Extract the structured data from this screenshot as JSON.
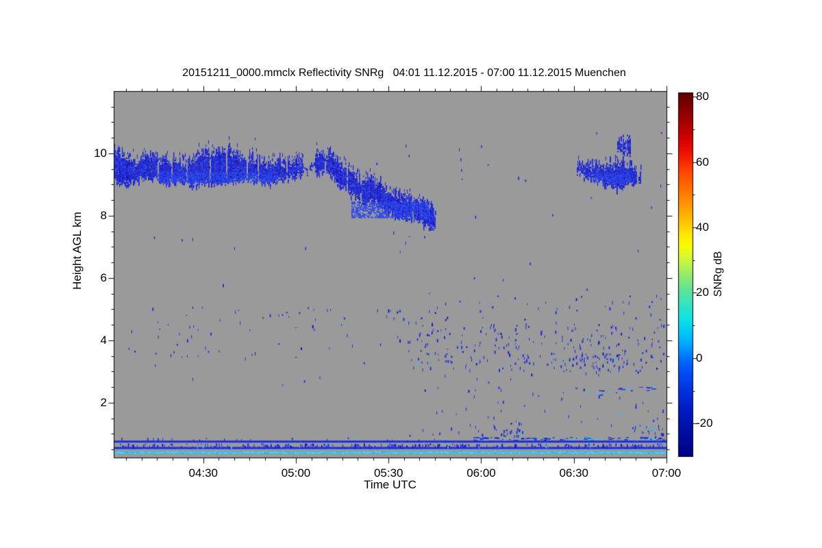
{
  "page": {
    "background": "#ffffff"
  },
  "chart_data": {
    "type": "heatmap",
    "title": "20151211_0000.mmclx Reflectivity SNRg   04:01 11.12.2015 - 07:00 11.12.2015 Muenchen",
    "xlabel": "Time UTC",
    "ylabel": "Height AGL km",
    "colorbar_label": "SNRg dB",
    "station": "Muenchen",
    "time_range": "04:01 11.12.2015 - 07:00 11.12.2015",
    "background_color": "#9a9a9a",
    "x_axis": {
      "t_start_min": 1,
      "t_end_min": 180,
      "major_ticks": [
        {
          "t": 30,
          "label": "04:30"
        },
        {
          "t": 60,
          "label": "05:00"
        },
        {
          "t": 90,
          "label": "05:30"
        },
        {
          "t": 120,
          "label": "06:00"
        },
        {
          "t": 150,
          "label": "06:30"
        },
        {
          "t": 180,
          "label": "07:00"
        }
      ],
      "minor_step_min": 5
    },
    "y_axis": {
      "min": 0.24,
      "max": 12,
      "major_ticks": [
        {
          "v": 2,
          "label": "2"
        },
        {
          "v": 4,
          "label": "4"
        },
        {
          "v": 6,
          "label": "6"
        },
        {
          "v": 8,
          "label": "8"
        },
        {
          "v": 10,
          "label": "10"
        }
      ],
      "minor_step": 0.5
    },
    "colorbar": {
      "min": -30,
      "max": 81.3,
      "major_ticks": [
        {
          "v": 80,
          "label": "80"
        },
        {
          "v": 60,
          "label": "60"
        },
        {
          "v": 40,
          "label": "40"
        },
        {
          "v": 20,
          "label": "20"
        },
        {
          "v": 0,
          "label": "0"
        },
        {
          "v": -20,
          "label": "-20"
        }
      ],
      "minor_step": 10,
      "gradient": [
        [
          0.0,
          "#600000"
        ],
        [
          0.05,
          "#8c0000"
        ],
        [
          0.11,
          "#c40000"
        ],
        [
          0.16,
          "#ee0c00"
        ],
        [
          0.21,
          "#ff4000"
        ],
        [
          0.26,
          "#ff6c00"
        ],
        [
          0.31,
          "#ff9800"
        ],
        [
          0.35,
          "#ffc000"
        ],
        [
          0.39,
          "#ffe800"
        ],
        [
          0.42,
          "#f8fc00"
        ],
        [
          0.46,
          "#ccf83c"
        ],
        [
          0.5,
          "#96ec6c"
        ],
        [
          0.54,
          "#60e494"
        ],
        [
          0.58,
          "#34e4c0"
        ],
        [
          0.62,
          "#0ce4e4"
        ],
        [
          0.66,
          "#00c8f8"
        ],
        [
          0.7,
          "#009cff"
        ],
        [
          0.73,
          "#0070ff"
        ],
        [
          0.77,
          "#004cf8"
        ],
        [
          0.82,
          "#0030e0"
        ],
        [
          0.87,
          "#001cc4"
        ],
        [
          0.93,
          "#000ea4"
        ],
        [
          1.0,
          "#000088"
        ]
      ]
    },
    "palette": {
      "cloud_base": "#1c24d8",
      "cloud_dark": "#1212b0",
      "cloud_light": "#2a44ea",
      "cloud_bright": "#3a66f2",
      "speckle": "#2230e4",
      "speckle_dark": "#1518bc",
      "cyan": "#38c4ee",
      "stripe_blue": "#1c2ce2",
      "stripe_cyan": "#3cc2ee",
      "stripe_cyan_light": "#70dcf8",
      "stripe_cyan_dark": "#28a0dc"
    },
    "cloud_bands": [
      {
        "name": "cirrus-deck-0401-0545",
        "profile": [
          [
            1,
            10.2,
            9.2
          ],
          [
            4,
            9.9,
            9.0
          ],
          [
            8,
            9.75,
            9.15
          ],
          [
            13,
            9.9,
            9.25
          ],
          [
            17,
            9.8,
            9.1
          ],
          [
            22,
            9.7,
            9.15
          ],
          [
            26,
            9.75,
            9.0
          ],
          [
            31,
            10.05,
            9.0
          ],
          [
            35,
            10.0,
            9.05
          ],
          [
            38,
            10.15,
            9.05
          ],
          [
            42,
            9.9,
            9.15
          ],
          [
            45,
            9.8,
            9.25
          ],
          [
            48,
            9.7,
            9.15
          ],
          [
            52,
            9.65,
            9.05
          ],
          [
            54,
            9.75,
            9.15
          ],
          [
            58,
            9.7,
            9.25
          ],
          [
            61,
            9.8,
            9.3
          ],
          [
            64,
            9.65,
            9.4
          ],
          [
            67,
            10.0,
            9.45
          ],
          [
            71,
            9.95,
            9.35
          ],
          [
            74,
            9.65,
            8.9
          ],
          [
            77,
            9.55,
            8.8
          ],
          [
            81,
            9.15,
            8.35
          ],
          [
            84,
            9.15,
            8.5
          ],
          [
            87,
            9.05,
            8.35
          ],
          [
            91,
            8.65,
            8.0
          ],
          [
            94,
            8.6,
            7.95
          ],
          [
            97,
            8.55,
            7.9
          ],
          [
            101,
            8.45,
            7.8
          ],
          [
            103,
            8.25,
            7.7
          ],
          [
            105,
            7.95,
            7.65
          ]
        ],
        "cores": [
          {
            "t0": 15,
            "t1": 52,
            "h0": 9.05,
            "h1": 9.4
          },
          {
            "t0": 78,
            "t1": 103,
            "h0": 7.95,
            "h1": 8.45
          }
        ],
        "gaps": [
          [
            62,
            66
          ]
        ]
      },
      {
        "name": "cirrus-patch-0630-0655",
        "profile": [
          [
            151,
            9.5,
            9.35
          ],
          [
            155,
            9.6,
            9.25
          ],
          [
            158,
            9.65,
            9.15
          ],
          [
            161,
            9.6,
            9.0
          ],
          [
            165,
            9.65,
            8.9
          ],
          [
            167,
            9.55,
            9.0
          ],
          [
            169,
            9.5,
            9.05
          ],
          [
            171.5,
            9.4,
            9.05
          ]
        ],
        "cores": [
          {
            "t0": 156,
            "t1": 168,
            "h0": 9.05,
            "h1": 9.35
          }
        ],
        "gaps": []
      },
      {
        "name": "fragment-above-patch",
        "profile": [
          [
            164,
            10.45,
            10.05
          ],
          [
            166,
            10.5,
            10.0
          ],
          [
            168,
            10.4,
            10.05
          ]
        ],
        "cores": [],
        "gaps": []
      }
    ],
    "isolated_echoes": [
      [
        46.7,
        10.5
      ],
      [
        95.5,
        10.28
      ],
      [
        96.5,
        9.96
      ],
      [
        112.8,
        10.17
      ],
      [
        113.3,
        9.85
      ],
      [
        113.5,
        9.5
      ],
      [
        113.7,
        9.2
      ],
      [
        119.9,
        10.26
      ],
      [
        122.1,
        9.65
      ],
      [
        131.9,
        9.25
      ],
      [
        134.1,
        9.16
      ],
      [
        157.2,
        10.68
      ],
      [
        178.2,
        10.68
      ],
      [
        171.5,
        9.3
      ],
      [
        118,
        8.0
      ],
      [
        143,
        8.05
      ],
      [
        155.5,
        8.6
      ],
      [
        175,
        8.3
      ],
      [
        178,
        9.0
      ],
      [
        14,
        7.33
      ],
      [
        23,
        7.25
      ],
      [
        63,
        7.0
      ],
      [
        86,
        9.7
      ],
      [
        101.5,
        7.35
      ],
      [
        91.5,
        7.5
      ]
    ],
    "speckle_regions": [
      {
        "t0": 4,
        "t1": 96,
        "h0": 3.45,
        "h1": 5.1,
        "count": 70,
        "cyan": 0
      },
      {
        "t0": 8,
        "t1": 96,
        "h0": 2.55,
        "h1": 3.45,
        "count": 6,
        "cyan": 0
      },
      {
        "t0": 96,
        "t1": 179,
        "h0": 3.0,
        "h1": 4.55,
        "count": 230,
        "cyan": 0.02
      },
      {
        "t0": 96,
        "t1": 179,
        "h0": 4.55,
        "h1": 5.5,
        "count": 42,
        "cyan": 0
      },
      {
        "t0": 100,
        "t1": 179,
        "h0": 1.3,
        "h1": 3.0,
        "count": 55,
        "cyan": 0.03
      },
      {
        "t0": 20,
        "t1": 179,
        "h0": 5.5,
        "h1": 7.6,
        "count": 12,
        "cyan": 0
      },
      {
        "t0": 150,
        "t1": 177,
        "h0": 2.25,
        "h1": 2.55,
        "count": 22,
        "cyan": 0.25,
        "horiz": true
      },
      {
        "t0": 126,
        "t1": 134,
        "h0": 0.95,
        "h1": 1.2,
        "count": 18,
        "cyan": 0.1
      },
      {
        "t0": 117,
        "t1": 179,
        "h0": 0.81,
        "h1": 0.9,
        "count": 90,
        "cyan": 0.3,
        "horiz": true
      },
      {
        "t0": 1,
        "t1": 179,
        "h0": 0.6,
        "h1": 0.7,
        "count": 280,
        "cyan": 0.08
      },
      {
        "t0": 1,
        "t1": 117,
        "h0": 0.81,
        "h1": 0.9,
        "count": 25,
        "cyan": 0.05
      },
      {
        "t0": 150,
        "t1": 168,
        "h0": 3.2,
        "h1": 3.65,
        "count": 40,
        "cyan": 0.06
      },
      {
        "t0": 168,
        "t1": 179,
        "h0": 0.85,
        "h1": 1.3,
        "count": 25,
        "cyan": 0.2
      },
      {
        "t0": 96,
        "t1": 130,
        "h0": 0.95,
        "h1": 1.3,
        "count": 12,
        "cyan": 0
      }
    ],
    "ground_clutter_stripes": [
      {
        "h0": 0.72,
        "h1": 0.785,
        "color_key": "stripe_blue",
        "noise": false
      },
      {
        "h0": 0.515,
        "h1": 0.58,
        "color_key": "stripe_blue",
        "noise": false
      },
      {
        "h0": 0.36,
        "h1": 0.44,
        "color_key": "stripe_cyan",
        "noise": true
      }
    ]
  }
}
